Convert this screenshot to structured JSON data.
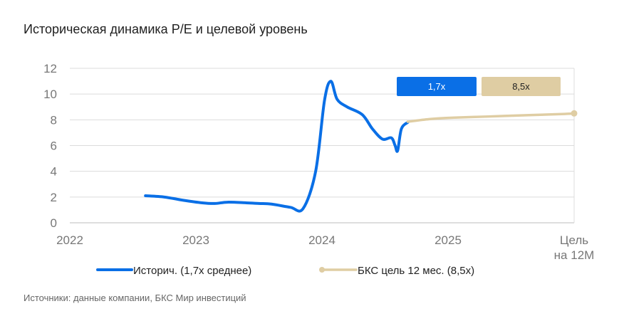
{
  "title": "Историческая динамика P/E и целевой уровень",
  "source": "Источники: данные компании, БКС Мир инвестиций",
  "colors": {
    "historical": "#0a6fe6",
    "target": "#dfcda3",
    "grid": "#dcdcdc",
    "axis": "#bdbdbd"
  },
  "chart_data": {
    "type": "line",
    "ylim": [
      0,
      12
    ],
    "yticks": [
      "0",
      "2",
      "4",
      "6",
      "8",
      "10",
      "12"
    ],
    "xticks": [
      "2022",
      "2023",
      "2024",
      "2025",
      "Цель\nна 12М"
    ],
    "grid": true,
    "legend_position": "bottom",
    "series": [
      {
        "name": "Историч. (1,7х среднее)",
        "points": [
          [
            2022.6,
            2.1
          ],
          [
            2022.75,
            2.0
          ],
          [
            2022.9,
            1.75
          ],
          [
            2023.05,
            1.55
          ],
          [
            2023.15,
            1.5
          ],
          [
            2023.25,
            1.6
          ],
          [
            2023.4,
            1.55
          ],
          [
            2023.5,
            1.5
          ],
          [
            2023.6,
            1.45
          ],
          [
            2023.75,
            1.2
          ],
          [
            2023.85,
            1.1
          ],
          [
            2023.95,
            4.0
          ],
          [
            2024.02,
            9.5
          ],
          [
            2024.07,
            11.0
          ],
          [
            2024.12,
            9.6
          ],
          [
            2024.2,
            9.0
          ],
          [
            2024.32,
            8.4
          ],
          [
            2024.4,
            7.3
          ],
          [
            2024.48,
            6.5
          ],
          [
            2024.55,
            6.6
          ],
          [
            2024.58,
            6.0
          ],
          [
            2024.6,
            5.6
          ],
          [
            2024.63,
            7.3
          ],
          [
            2024.68,
            7.8
          ]
        ]
      },
      {
        "name": "БКС цель 12 мес. (8,5х)",
        "points": [
          [
            2024.68,
            7.85
          ],
          [
            2024.85,
            8.05
          ],
          [
            2025.0,
            8.15
          ],
          [
            2025.3,
            8.25
          ],
          [
            2025.6,
            8.35
          ],
          [
            2025.9,
            8.45
          ],
          [
            2026.0,
            8.5
          ]
        ]
      }
    ],
    "badges": [
      {
        "label": "1,7х",
        "series": 0
      },
      {
        "label": "8,5х",
        "series": 1
      }
    ]
  }
}
